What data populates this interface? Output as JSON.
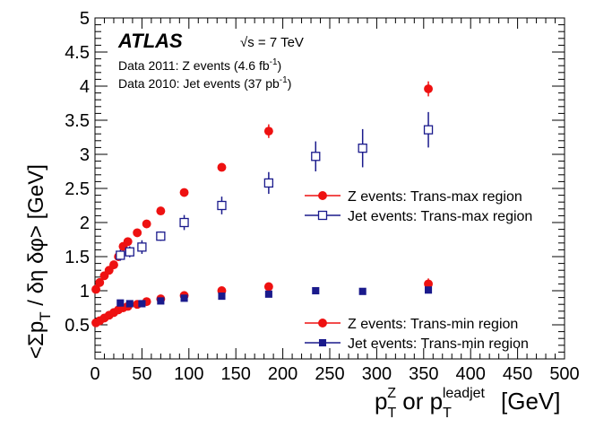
{
  "chart_data": {
    "type": "scatter",
    "experiment": "ATLAS",
    "energy_label": "√s = 7 TeV",
    "info_lines": [
      {
        "text": "Data 2011: Z events (4.6 fb",
        "sup": "-1",
        "tail": ")"
      },
      {
        "text": "Data 2010: Jet events (37 pb",
        "sup": "-1",
        "tail": ")"
      }
    ],
    "ylabel": {
      "main": "<Σp",
      "sub": "T",
      "rest": " / δη δφ> [GeV]"
    },
    "xlabel": {
      "p1": "p",
      "sub1": "T",
      "sup1": "Z",
      "mid": " or p",
      "sub2": "T",
      "sup2": "leadjet",
      "unit": "[GeV]"
    },
    "xlim": [
      0,
      500
    ],
    "ylim": [
      0,
      5
    ],
    "xticks": [
      0,
      50,
      100,
      150,
      200,
      250,
      300,
      350,
      400,
      450,
      500
    ],
    "yticks": [
      "0.5",
      "1",
      "1.5",
      "2",
      "2.5",
      "3",
      "3.5",
      "4",
      "4.5",
      "5"
    ],
    "ytick_values": [
      0.5,
      1,
      1.5,
      2,
      2.5,
      3,
      3.5,
      4,
      4.5,
      5
    ],
    "legend_top": [
      "Z events: Trans-max region",
      "Jet events: Trans-max region"
    ],
    "legend_bottom": [
      "Z events: Trans-min region",
      "Jet events: Trans-min region"
    ],
    "series": [
      {
        "name": "Z events: Trans-max region",
        "color": "#ee1111",
        "marker": "circle-filled",
        "points": [
          [
            1,
            1.02,
            0
          ],
          [
            5,
            1.12,
            0
          ],
          [
            10,
            1.22,
            0
          ],
          [
            15,
            1.3,
            0
          ],
          [
            20,
            1.38,
            0
          ],
          [
            25,
            1.5,
            0
          ],
          [
            30,
            1.65,
            0
          ],
          [
            35,
            1.72,
            0
          ],
          [
            45,
            1.85,
            0
          ],
          [
            55,
            1.98,
            0
          ],
          [
            70,
            2.17,
            0
          ],
          [
            95,
            2.44,
            0
          ],
          [
            135,
            2.81,
            0
          ],
          [
            185,
            3.34,
            0.1
          ],
          [
            355,
            3.96,
            0.11
          ]
        ]
      },
      {
        "name": "Jet events: Trans-max region",
        "color": "#1a1a8c",
        "marker": "square-open",
        "points": [
          [
            27,
            1.52,
            0.08
          ],
          [
            37,
            1.57,
            0.08
          ],
          [
            50,
            1.64,
            0.1
          ],
          [
            70,
            1.8,
            0.07
          ],
          [
            95,
            2.0,
            0.11
          ],
          [
            135,
            2.25,
            0.13
          ],
          [
            185,
            2.58,
            0.16
          ],
          [
            235,
            2.97,
            0.22
          ],
          [
            285,
            3.09,
            0.28
          ],
          [
            355,
            3.36,
            0.26
          ]
        ]
      },
      {
        "name": "Z events: Trans-min region",
        "color": "#ee1111",
        "marker": "circle-filled",
        "points": [
          [
            1,
            0.53,
            0
          ],
          [
            5,
            0.56,
            0
          ],
          [
            10,
            0.6,
            0
          ],
          [
            15,
            0.64,
            0
          ],
          [
            20,
            0.68,
            0
          ],
          [
            25,
            0.72,
            0
          ],
          [
            30,
            0.75,
            0
          ],
          [
            35,
            0.77,
            0
          ],
          [
            45,
            0.8,
            0
          ],
          [
            55,
            0.84,
            0
          ],
          [
            70,
            0.88,
            0
          ],
          [
            95,
            0.93,
            0
          ],
          [
            135,
            1.0,
            0
          ],
          [
            185,
            1.06,
            0
          ],
          [
            355,
            1.1,
            0.08
          ]
        ]
      },
      {
        "name": "Jet events: Trans-min region",
        "color": "#1a1a8c",
        "marker": "square-filled",
        "points": [
          [
            27,
            0.82,
            0
          ],
          [
            37,
            0.81,
            0
          ],
          [
            50,
            0.81,
            0
          ],
          [
            70,
            0.85,
            0
          ],
          [
            95,
            0.89,
            0
          ],
          [
            135,
            0.92,
            0
          ],
          [
            185,
            0.95,
            0
          ],
          [
            235,
            1.0,
            0
          ],
          [
            285,
            0.99,
            0
          ],
          [
            355,
            1.01,
            0.03
          ]
        ]
      }
    ]
  }
}
